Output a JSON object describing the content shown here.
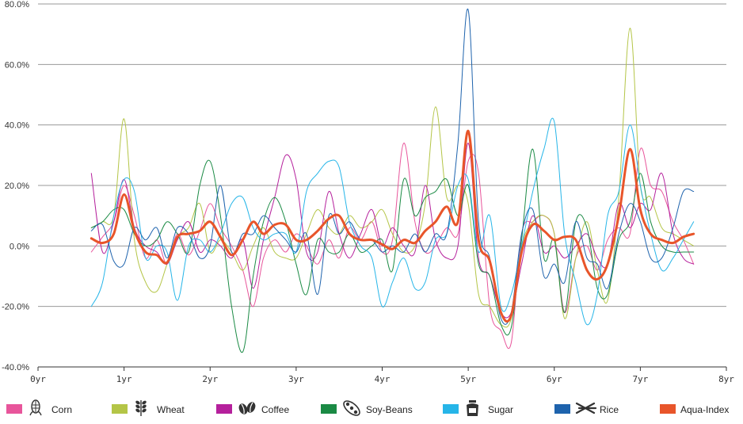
{
  "chart_data": {
    "type": "line",
    "title": "",
    "xlabel": "",
    "ylabel": "",
    "xlim": [
      0,
      8
    ],
    "ylim": [
      -40,
      80
    ],
    "x_ticks": [
      {
        "value": 0,
        "label": "0yr"
      },
      {
        "value": 1,
        "label": "1yr"
      },
      {
        "value": 2,
        "label": "2yr"
      },
      {
        "value": 3,
        "label": "3yr"
      },
      {
        "value": 4,
        "label": "4yr"
      },
      {
        "value": 5,
        "label": "5yr"
      },
      {
        "value": 6,
        "label": "6yr"
      },
      {
        "value": 7,
        "label": "7yr"
      },
      {
        "value": 8,
        "label": "8yr"
      }
    ],
    "y_ticks": [
      {
        "value": 80,
        "label": "80.0%"
      },
      {
        "value": 60,
        "label": "60.0%"
      },
      {
        "value": 40,
        "label": "40.0%"
      },
      {
        "value": 20,
        "label": "20.0%"
      },
      {
        "value": 0,
        "label": "0.0%"
      },
      {
        "value": -20,
        "label": "-20.0%"
      },
      {
        "value": -40,
        "label": "-40.0%"
      }
    ],
    "grid": "horizontal",
    "legend_position": "bottom",
    "x": [
      0.62,
      0.75,
      0.88,
      1.0,
      1.12,
      1.25,
      1.38,
      1.5,
      1.62,
      1.75,
      1.88,
      2.0,
      2.12,
      2.25,
      2.38,
      2.5,
      2.62,
      2.75,
      2.88,
      3.0,
      3.12,
      3.25,
      3.38,
      3.5,
      3.62,
      3.75,
      3.88,
      4.0,
      4.12,
      4.25,
      4.38,
      4.5,
      4.62,
      4.75,
      4.88,
      5.0,
      5.12,
      5.25,
      5.38,
      5.5,
      5.62,
      5.75,
      5.88,
      6.0,
      6.12,
      6.25,
      6.38,
      6.5,
      6.62,
      6.75,
      6.88,
      7.0,
      7.12,
      7.25,
      7.38,
      7.5,
      7.62
    ],
    "series": [
      {
        "name": "Corn",
        "color": "#e8559b",
        "width": 1,
        "values": [
          -2,
          3,
          8,
          20,
          10,
          -4,
          2,
          -6,
          4,
          -3,
          5,
          14,
          6,
          0,
          -8,
          -20,
          -4,
          2,
          -2,
          4,
          0,
          -6,
          2,
          -4,
          6,
          2,
          8,
          -2,
          2,
          34,
          8,
          -2,
          0,
          6,
          4,
          28,
          24,
          -20,
          -28,
          -32,
          4,
          8,
          10,
          4,
          -22,
          -4,
          0,
          -8,
          2,
          6,
          4,
          32,
          20,
          18,
          8,
          2,
          -6
        ]
      },
      {
        "name": "Wheat",
        "color": "#b4c547",
        "width": 1,
        "values": [
          6,
          8,
          10,
          42,
          2,
          -12,
          -15,
          -6,
          3,
          6,
          14,
          -2,
          2,
          -2,
          -8,
          0,
          6,
          -2,
          -4,
          -4,
          4,
          12,
          6,
          4,
          10,
          6,
          8,
          12,
          4,
          -2,
          0,
          14,
          46,
          16,
          20,
          14,
          -16,
          -20,
          -26,
          -24,
          0,
          8,
          10,
          4,
          -24,
          -4,
          8,
          -8,
          -18,
          16,
          72,
          20,
          16,
          6,
          4,
          2,
          0
        ]
      },
      {
        "name": "Coffee",
        "color": "#b5209c",
        "width": 1,
        "values": [
          24,
          -2,
          8,
          22,
          6,
          0,
          -2,
          -6,
          2,
          8,
          -2,
          2,
          0,
          -4,
          2,
          -14,
          2,
          16,
          30,
          22,
          -2,
          -2,
          18,
          4,
          -4,
          4,
          12,
          0,
          6,
          0,
          -2,
          20,
          2,
          -4,
          0,
          34,
          -4,
          -10,
          -22,
          -22,
          -6,
          10,
          -2,
          0,
          -4,
          0,
          4,
          -4,
          -6,
          14,
          6,
          14,
          12,
          24,
          4,
          -4,
          -6
        ]
      },
      {
        "name": "Soy-Beans",
        "color": "#1a8a44",
        "width": 1,
        "values": [
          6,
          8,
          12,
          12,
          4,
          0,
          2,
          8,
          4,
          -2,
          20,
          28,
          10,
          -20,
          -35,
          -10,
          8,
          16,
          8,
          -6,
          -16,
          2,
          -2,
          -2,
          4,
          -2,
          0,
          2,
          -8,
          22,
          10,
          16,
          18,
          22,
          10,
          20,
          -6,
          -10,
          -26,
          -27,
          2,
          32,
          -4,
          2,
          -22,
          8,
          6,
          -14,
          -16,
          2,
          8,
          24,
          8,
          0,
          -2,
          -2,
          -2
        ]
      },
      {
        "name": "Sugar",
        "color": "#26b5e8",
        "width": 1,
        "values": [
          -20,
          -12,
          10,
          22,
          18,
          -4,
          0,
          -2,
          -18,
          0,
          2,
          -2,
          4,
          14,
          16,
          6,
          2,
          4,
          4,
          -2,
          18,
          24,
          28,
          26,
          8,
          0,
          -4,
          -20,
          -12,
          -4,
          -14,
          -12,
          2,
          4,
          20,
          22,
          -2,
          10,
          -20,
          -16,
          0,
          18,
          32,
          41,
          4,
          -12,
          -26,
          -16,
          10,
          18,
          40,
          20,
          4,
          -8,
          -4,
          2,
          8
        ]
      },
      {
        "name": "Rice",
        "color": "#1e63ad",
        "width": 1,
        "values": [
          5,
          7,
          -5,
          -6,
          6,
          2,
          6,
          -4,
          6,
          4,
          -4,
          0,
          20,
          -2,
          4,
          4,
          10,
          6,
          2,
          -2,
          4,
          -16,
          10,
          4,
          8,
          2,
          2,
          -2,
          0,
          -2,
          4,
          -2,
          4,
          4,
          34,
          78,
          8,
          -4,
          -24,
          -22,
          4,
          12,
          -10,
          -6,
          -12,
          8,
          -4,
          -6,
          -14,
          4,
          14,
          8,
          -4,
          -4,
          6,
          18,
          18
        ]
      },
      {
        "name": "Aqua-Index",
        "color": "#e8552a",
        "width": 3,
        "values": [
          2.5,
          1,
          4,
          17,
          5,
          -2,
          -3,
          -5.5,
          3,
          4,
          5,
          8,
          3,
          -3,
          2,
          8,
          4,
          7,
          7,
          2,
          2,
          5,
          9,
          10,
          4,
          2,
          2,
          0.5,
          -1,
          2,
          1,
          5,
          8,
          13,
          8,
          38,
          2,
          -5,
          -22,
          -23,
          -2,
          7,
          5,
          2,
          3,
          2,
          -8,
          -11,
          -6,
          10,
          32,
          12,
          4,
          2,
          1,
          3,
          4
        ]
      }
    ]
  },
  "legend": [
    {
      "label": "Corn",
      "color": "#e8559b",
      "icon": "corn-icon"
    },
    {
      "label": "Wheat",
      "color": "#b4c547",
      "icon": "wheat-icon"
    },
    {
      "label": "Coffee",
      "color": "#b5209c",
      "icon": "coffee-icon"
    },
    {
      "label": "Soy-Beans",
      "color": "#1a8a44",
      "icon": "soy-beans-icon"
    },
    {
      "label": "Sugar",
      "color": "#26b5e8",
      "icon": "sugar-icon"
    },
    {
      "label": "Rice",
      "color": "#1e63ad",
      "icon": "rice-icon"
    },
    {
      "label": "Aqua-Index",
      "color": "#e8552a",
      "icon": ""
    }
  ]
}
